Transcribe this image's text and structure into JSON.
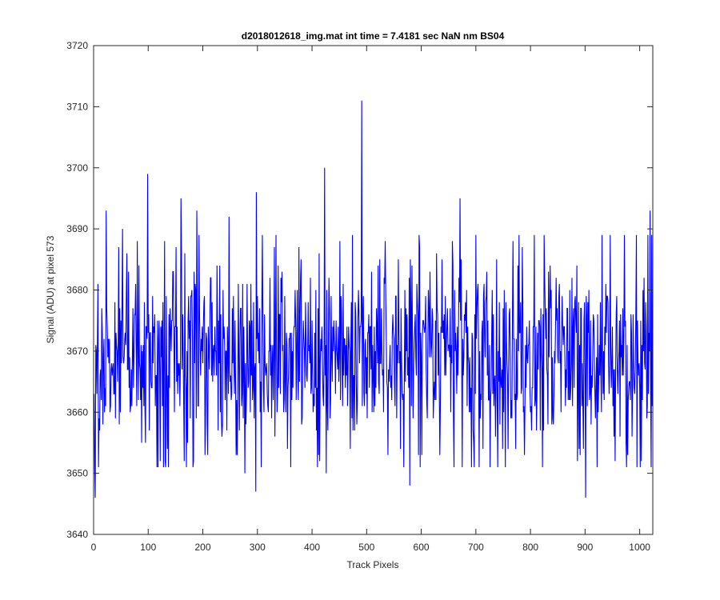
{
  "chart_data": {
    "type": "line",
    "title": "d2018012618_img.mat int time = 7.4181 sec  NaN nm BS04",
    "xlabel": "Track Pixels",
    "ylabel": "Signal (ADU) at pixel 573",
    "xlim": [
      0,
      1024
    ],
    "ylim": [
      3640,
      3720
    ],
    "xticks": [
      "0",
      "100",
      "200",
      "300",
      "400",
      "500",
      "600",
      "700",
      "800",
      "900",
      "1000"
    ],
    "yticks": [
      "3640",
      "3650",
      "3660",
      "3670",
      "3680",
      "3690",
      "3700",
      "3710",
      "3720"
    ],
    "grid": false,
    "colors": {
      "line": "#0000ff",
      "axes": "#262626"
    },
    "series": [
      {
        "name": "",
        "noise_model": {
          "mean": 3670,
          "std": 8.5,
          "count": 1024,
          "seed": 20180126
        },
        "peaks": [
          {
            "x": 2,
            "y": 3646
          },
          {
            "x": 6,
            "y": 3672
          },
          {
            "x": 10,
            "y": 3657
          },
          {
            "x": 22,
            "y": 3693
          },
          {
            "x": 29,
            "y": 3660
          },
          {
            "x": 52,
            "y": 3690
          },
          {
            "x": 98,
            "y": 3699
          },
          {
            "x": 130,
            "y": 3652
          },
          {
            "x": 159,
            "y": 3695
          },
          {
            "x": 165,
            "y": 3652
          },
          {
            "x": 188,
            "y": 3693
          },
          {
            "x": 247,
            "y": 3692
          },
          {
            "x": 276,
            "y": 3650
          },
          {
            "x": 296,
            "y": 3647
          },
          {
            "x": 297,
            "y": 3696
          },
          {
            "x": 422,
            "y": 3700
          },
          {
            "x": 425,
            "y": 3650
          },
          {
            "x": 490,
            "y": 3711
          },
          {
            "x": 578,
            "y": 3648
          },
          {
            "x": 670,
            "y": 3695
          },
          {
            "x": 725,
            "y": 3651
          },
          {
            "x": 900,
            "y": 3646
          },
          {
            "x": 1000,
            "y": 3651
          },
          {
            "x": 1018,
            "y": 3693
          }
        ]
      }
    ]
  }
}
